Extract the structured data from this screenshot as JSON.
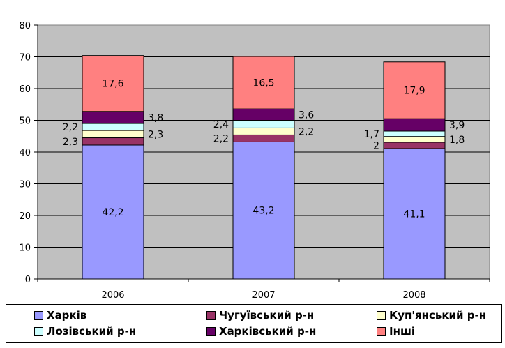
{
  "chart_data": {
    "type": "bar",
    "stacked": true,
    "categories": [
      "2006",
      "2007",
      "2008"
    ],
    "ylim": [
      0,
      80
    ],
    "yticks": [
      0,
      10,
      20,
      30,
      40,
      50,
      60,
      70,
      80
    ],
    "grid": true,
    "legend": "bottom",
    "series": [
      {
        "name": "Харків",
        "color": "#9999FF",
        "values": [
          42.2,
          43.2,
          41.1
        ],
        "labels": [
          "42,2",
          "43,2",
          "41,1"
        ]
      },
      {
        "name": "Чугуївський р-н",
        "color": "#993366",
        "values": [
          2.3,
          2.2,
          2.0
        ],
        "labels": [
          "2,3",
          "2,2",
          "2"
        ]
      },
      {
        "name": "Куп'янський р-н",
        "color": "#FFFFCC",
        "values": [
          2.3,
          2.2,
          1.8
        ],
        "labels": [
          "2,3",
          "2,2",
          "1,8"
        ]
      },
      {
        "name": "Лозівський р-н",
        "color": "#CCFFFF",
        "values": [
          2.2,
          2.4,
          1.7
        ],
        "labels": [
          "2,2",
          "2,4",
          "1,7"
        ]
      },
      {
        "name": "Харківський р-н",
        "color": "#660066",
        "values": [
          3.8,
          3.6,
          3.9
        ],
        "labels": [
          "3,8",
          "3,6",
          "3,9"
        ]
      },
      {
        "name": "Інші",
        "color": "#FF8080",
        "values": [
          17.6,
          16.5,
          17.9
        ],
        "labels": [
          "17,6",
          "16,5",
          "17,9"
        ]
      }
    ]
  }
}
